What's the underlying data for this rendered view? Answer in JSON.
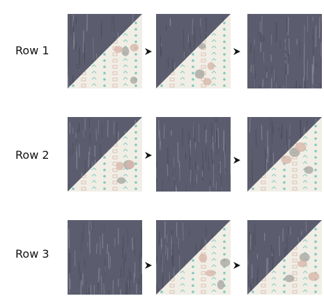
{
  "rows": [
    {
      "label": "Row 1",
      "blocks": [
        "hst",
        "hst",
        "solid"
      ]
    },
    {
      "label": "Row 2",
      "blocks": [
        "hst",
        "solid",
        "hst"
      ]
    },
    {
      "label": "Row 3",
      "blocks": [
        "solid",
        "hst",
        "hst"
      ]
    }
  ],
  "colors": {
    "dark_fabric": "#5b5d6e",
    "dark_streak": "#8a8c9c",
    "light_fabric": "#f1eee6",
    "teal_print": "#7fc9bd",
    "rose_print": "#d8b6aa",
    "gray_print": "#a9a7a3",
    "arrow": "#111111",
    "background": "#ffffff"
  },
  "icons": {
    "arrow": "right-arrow-icon",
    "block_hst": "half-square-triangle-block",
    "block_solid": "solid-square-block"
  }
}
